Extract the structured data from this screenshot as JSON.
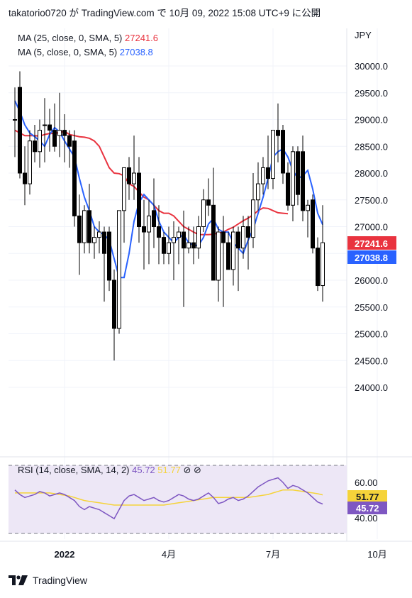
{
  "header": {
    "text": "takatorio0720 が TradingView.com で 10月 09, 2022 15:08 UTC+9 に公開"
  },
  "footer": {
    "brand": "TradingView"
  },
  "colors": {
    "ma25": "#e9333f",
    "ma5": "#2962ff",
    "rsi": "#7e57c2",
    "rsi_ma": "#f5d33a",
    "candle": "#000000",
    "rsi_band": "#ede7f6"
  },
  "chart_data": [
    {
      "type": "candlestick",
      "currency": "JPY",
      "legend": [
        {
          "label": "MA (25, close, 0, SMA, 5)",
          "value": "27241.6",
          "color": "#e9333f"
        },
        {
          "label": "MA (5, close, 0, SMA, 5)",
          "value": "27038.8",
          "color": "#2962ff"
        }
      ],
      "y_ticks": [
        "30000.0",
        "29500.0",
        "29000.0",
        "28500.0",
        "28000.0",
        "27500.0",
        "27000.0",
        "26500.0",
        "26000.0",
        "25500.0",
        "25000.0",
        "24500.0",
        "24000.0"
      ],
      "ylim": [
        24000,
        30200
      ],
      "x_ticks": [
        {
          "label": "2022",
          "index": 10
        },
        {
          "label": "4月",
          "index": 31
        },
        {
          "label": "7月",
          "index": 52
        },
        {
          "label": "10月",
          "index": 73
        }
      ],
      "price_labels": [
        {
          "value": "27241.6",
          "color": "#e9333f"
        },
        {
          "value": "27038.8",
          "color": "#2962ff"
        }
      ],
      "candles": [
        {
          "o": 29000,
          "h": 29600,
          "l": 28300,
          "c": 29000
        },
        {
          "o": 29600,
          "h": 29900,
          "l": 27900,
          "c": 28000
        },
        {
          "o": 28000,
          "h": 28500,
          "l": 27400,
          "c": 27800
        },
        {
          "o": 27800,
          "h": 28800,
          "l": 27600,
          "c": 28600
        },
        {
          "o": 28600,
          "h": 28900,
          "l": 28200,
          "c": 28400
        },
        {
          "o": 28400,
          "h": 29000,
          "l": 28100,
          "c": 28800
        },
        {
          "o": 28900,
          "h": 29400,
          "l": 28200,
          "c": 28900
        },
        {
          "o": 28900,
          "h": 29200,
          "l": 28400,
          "c": 28800
        },
        {
          "o": 28800,
          "h": 29300,
          "l": 28400,
          "c": 28500
        },
        {
          "o": 28700,
          "h": 29500,
          "l": 28300,
          "c": 28800
        },
        {
          "o": 28800,
          "h": 29100,
          "l": 28200,
          "c": 28700
        },
        {
          "o": 28700,
          "h": 28800,
          "l": 28100,
          "c": 28500
        },
        {
          "o": 28600,
          "h": 28800,
          "l": 27000,
          "c": 27200
        },
        {
          "o": 27200,
          "h": 27600,
          "l": 26100,
          "c": 26700
        },
        {
          "o": 26700,
          "h": 27400,
          "l": 26500,
          "c": 27300
        },
        {
          "o": 27300,
          "h": 27800,
          "l": 26500,
          "c": 26700
        },
        {
          "o": 26700,
          "h": 27000,
          "l": 26400,
          "c": 26800
        },
        {
          "o": 26800,
          "h": 27100,
          "l": 26500,
          "c": 26900
        },
        {
          "o": 26900,
          "h": 27000,
          "l": 25600,
          "c": 26500
        },
        {
          "o": 26900,
          "h": 27000,
          "l": 25800,
          "c": 26000
        },
        {
          "o": 26000,
          "h": 26200,
          "l": 24500,
          "c": 25100
        },
        {
          "o": 25100,
          "h": 27300,
          "l": 25000,
          "c": 27300
        },
        {
          "o": 27300,
          "h": 28100,
          "l": 26700,
          "c": 28100
        },
        {
          "o": 28100,
          "h": 28300,
          "l": 27500,
          "c": 27800
        },
        {
          "o": 27800,
          "h": 28700,
          "l": 27500,
          "c": 28000
        },
        {
          "o": 28000,
          "h": 28300,
          "l": 26700,
          "c": 27000
        },
        {
          "o": 27000,
          "h": 27500,
          "l": 26200,
          "c": 26900
        },
        {
          "o": 26900,
          "h": 27500,
          "l": 26300,
          "c": 27200
        },
        {
          "o": 27300,
          "h": 27900,
          "l": 26600,
          "c": 27000
        },
        {
          "o": 27000,
          "h": 27400,
          "l": 26300,
          "c": 26800
        },
        {
          "o": 26800,
          "h": 26900,
          "l": 26300,
          "c": 26500
        },
        {
          "o": 26500,
          "h": 27000,
          "l": 26300,
          "c": 26700
        },
        {
          "o": 26700,
          "h": 27100,
          "l": 26000,
          "c": 26800
        },
        {
          "o": 26800,
          "h": 27000,
          "l": 26300,
          "c": 26900
        },
        {
          "o": 26900,
          "h": 27300,
          "l": 25500,
          "c": 26600
        },
        {
          "o": 26600,
          "h": 27000,
          "l": 26500,
          "c": 26700
        },
        {
          "o": 26700,
          "h": 27000,
          "l": 26300,
          "c": 26600
        },
        {
          "o": 26600,
          "h": 27200,
          "l": 26400,
          "c": 27000
        },
        {
          "o": 27000,
          "h": 27700,
          "l": 26900,
          "c": 27500
        },
        {
          "o": 27500,
          "h": 27900,
          "l": 27200,
          "c": 27400
        },
        {
          "o": 27400,
          "h": 28100,
          "l": 26000,
          "c": 26000
        },
        {
          "o": 26000,
          "h": 27000,
          "l": 25600,
          "c": 26900
        },
        {
          "o": 26900,
          "h": 27200,
          "l": 25500,
          "c": 26700
        },
        {
          "o": 26700,
          "h": 26900,
          "l": 26200,
          "c": 26200
        },
        {
          "o": 26200,
          "h": 27000,
          "l": 25900,
          "c": 26900
        },
        {
          "o": 26900,
          "h": 27000,
          "l": 25800,
          "c": 26600
        },
        {
          "o": 26600,
          "h": 27200,
          "l": 26400,
          "c": 27000
        },
        {
          "o": 27000,
          "h": 27200,
          "l": 26200,
          "c": 26800
        },
        {
          "o": 26800,
          "h": 28000,
          "l": 26600,
          "c": 27500
        },
        {
          "o": 27500,
          "h": 28200,
          "l": 27300,
          "c": 27800
        },
        {
          "o": 27800,
          "h": 28300,
          "l": 27600,
          "c": 28100
        },
        {
          "o": 28100,
          "h": 28700,
          "l": 27700,
          "c": 27900
        },
        {
          "o": 27900,
          "h": 28800,
          "l": 27700,
          "c": 28800
        },
        {
          "o": 28800,
          "h": 29300,
          "l": 28200,
          "c": 28700
        },
        {
          "o": 28800,
          "h": 28900,
          "l": 27800,
          "c": 28000
        },
        {
          "o": 28000,
          "h": 28200,
          "l": 27300,
          "c": 27400
        },
        {
          "o": 27400,
          "h": 28500,
          "l": 27100,
          "c": 28400
        },
        {
          "o": 28400,
          "h": 28500,
          "l": 27400,
          "c": 27600
        },
        {
          "o": 28400,
          "h": 28700,
          "l": 27100,
          "c": 27300
        },
        {
          "o": 27300,
          "h": 27500,
          "l": 26800,
          "c": 27400
        },
        {
          "o": 27500,
          "h": 27600,
          "l": 26500,
          "c": 26600
        },
        {
          "o": 26600,
          "h": 26800,
          "l": 25800,
          "c": 25900
        },
        {
          "o": 25900,
          "h": 27400,
          "l": 25600,
          "c": 26700
        }
      ],
      "ma25": [
        28800,
        28750,
        28700,
        28700,
        28700,
        28690,
        28720,
        28740,
        28740,
        28760,
        28780,
        28720,
        28700,
        28680,
        28670,
        28650,
        28600,
        28500,
        28300,
        28100,
        28000,
        27990,
        27950,
        27800,
        27750,
        27650,
        27550,
        27500,
        27400,
        27300,
        27250,
        27250,
        27200,
        27100,
        27000,
        26950,
        26900,
        26850,
        26850,
        26850,
        26860,
        26880,
        26900,
        26950,
        26990,
        27050,
        27110,
        27160,
        27220,
        27300,
        27350,
        27340,
        27300,
        27260,
        27250,
        27241.6
      ],
      "ma5": [
        29350,
        29150,
        28900,
        28750,
        28680,
        28600,
        28500,
        28720,
        28850,
        28770,
        28600,
        28450,
        28300,
        27900,
        27550,
        27300,
        27000,
        26900,
        26850,
        26750,
        26400,
        26050,
        26050,
        26500,
        27100,
        27450,
        27600,
        27500,
        27400,
        27100,
        26900,
        26800,
        26700,
        26800,
        26850,
        26700,
        26650,
        26650,
        26800,
        27050,
        27150,
        26950,
        26900,
        26900,
        26700,
        26600,
        26500,
        26750,
        26950,
        27250,
        27550,
        27900,
        28300,
        28400,
        28450,
        28300,
        28050,
        27900,
        27950,
        28050,
        27700,
        27250,
        27038.8
      ],
      "ma5_offset": 0,
      "ma25_offset": 7
    },
    {
      "type": "line",
      "title": "RSI (14, close, SMA, 14, 2)",
      "legend": [
        {
          "label": "RSI (14, close, SMA, 14, 2)",
          "value": "45.72",
          "color": "#7e57c2"
        },
        {
          "label": "",
          "value": "51.77",
          "color": "#f5d33a"
        }
      ],
      "hidden_marks": [
        "⊘",
        "⊘"
      ],
      "y_ticks": [
        "60.00",
        "40.00"
      ],
      "ylim": [
        30,
        75
      ],
      "band": [
        30,
        70
      ],
      "rsi": [
        55,
        52,
        50,
        51,
        52,
        54,
        53,
        51,
        52,
        53,
        52,
        50,
        48,
        44,
        42,
        44,
        43,
        42,
        40,
        38,
        36,
        42,
        48,
        51,
        52,
        50,
        48,
        49,
        50,
        48,
        47,
        48,
        50,
        52,
        51,
        49,
        48,
        49,
        51,
        53,
        50,
        46,
        47,
        49,
        50,
        48,
        49,
        51,
        54,
        57,
        59,
        61,
        62,
        63,
        60,
        56,
        58,
        57,
        55,
        53,
        50,
        47,
        45.72
      ],
      "rsi_ma": [
        53,
        53,
        53,
        53,
        53,
        53,
        53,
        53,
        52.5,
        52,
        51.5,
        51,
        50,
        49,
        48,
        47.5,
        47,
        46.5,
        46,
        45.5,
        45,
        45,
        45,
        45,
        45,
        45,
        45,
        45,
        45,
        45,
        45,
        45.5,
        46,
        46.5,
        47,
        47.5,
        48,
        48.5,
        49,
        49.5,
        50,
        50,
        50,
        50,
        50,
        50,
        50,
        50,
        50.5,
        51,
        51.5,
        52,
        53,
        54,
        55,
        55,
        55,
        54.5,
        54,
        53.5,
        53,
        52.5,
        51.77
      ],
      "price_labels": [
        {
          "value": "51.77",
          "color": "#f5d33a"
        },
        {
          "value": "45.72",
          "color": "#7e57c2"
        }
      ]
    }
  ]
}
